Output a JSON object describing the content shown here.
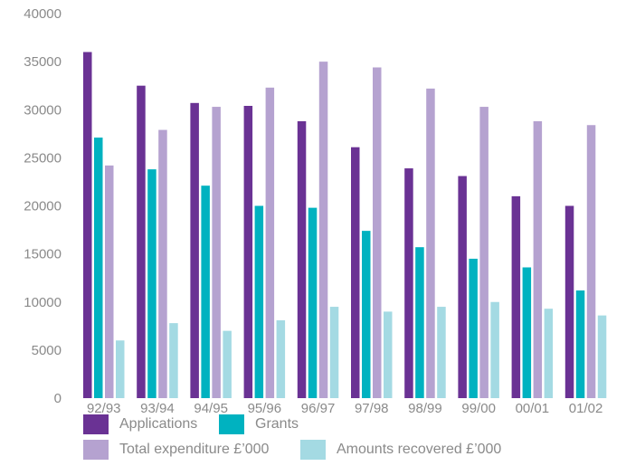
{
  "chart_data": {
    "type": "bar",
    "title": "",
    "xlabel": "",
    "ylabel": "",
    "categories": [
      "92/93",
      "93/94",
      "94/95",
      "95/96",
      "96/97",
      "97/98",
      "98/99",
      "99/00",
      "00/01",
      "01/02"
    ],
    "series": [
      {
        "name": "Applications",
        "color": "#6a3294",
        "values": [
          36000,
          32500,
          30700,
          30400,
          28800,
          26100,
          23900,
          23100,
          21000,
          20000
        ]
      },
      {
        "name": "Grants",
        "color": "#00b2c0",
        "values": [
          27100,
          23800,
          22100,
          20000,
          19800,
          17400,
          15700,
          14500,
          13600,
          11200
        ]
      },
      {
        "name": "Total expenditure £’000",
        "color": "#b5a2d0",
        "values": [
          24200,
          27900,
          30300,
          32300,
          35000,
          34400,
          32200,
          30300,
          28800,
          28400
        ]
      },
      {
        "name": "Amounts recovered £’000",
        "color": "#a4dae3",
        "values": [
          6000,
          7800,
          7000,
          8100,
          9500,
          9000,
          9500,
          10000,
          9300,
          8600
        ]
      }
    ],
    "ylim": [
      0,
      40000
    ],
    "yticks": [
      "0",
      "5000",
      "10000",
      "15000",
      "20000",
      "25000",
      "30000",
      "35000",
      "40000"
    ],
    "grid": false,
    "legend_position": "bottom"
  }
}
